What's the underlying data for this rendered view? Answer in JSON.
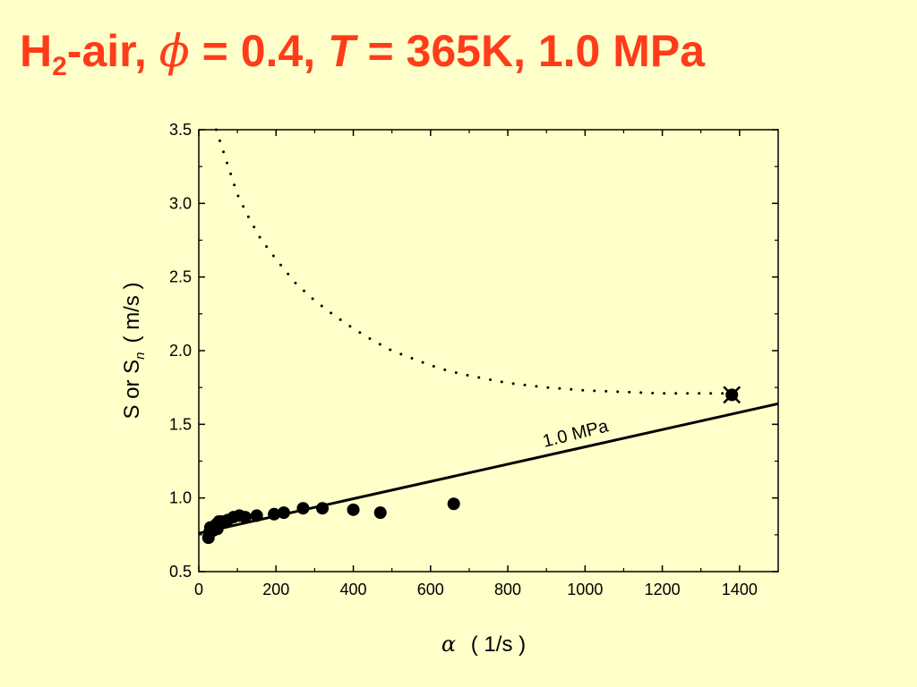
{
  "slide": {
    "title_h": "H",
    "title_sub": "2",
    "title_air": "-air, ",
    "title_phi_symbol": "ϕ",
    "title_phi_value": " = 0.4, ",
    "title_T_symbol": "T",
    "title_T_value": " = 365K, 1.0 MPa",
    "title_color": "#ff3c1a",
    "background_color": "#ffffc9"
  },
  "chart_data": {
    "type": "scatter",
    "xlabel_symbol": "α",
    "xlabel_unit": "( 1/s )",
    "ylabel": "S or S",
    "ylabel_sub": "n",
    "ylabel_unit": "( m/s )",
    "xlim": [
      0,
      1500
    ],
    "ylim": [
      0.5,
      3.5
    ],
    "xticks": [
      0,
      200,
      400,
      600,
      800,
      1000,
      1200,
      1400
    ],
    "yticks": [
      0.5,
      1.0,
      1.5,
      2.0,
      2.5,
      3.0,
      3.5
    ],
    "ytick_labels": [
      "0.5",
      "1.0",
      "1.5",
      "2.0",
      "2.5",
      "3.0",
      "3.5"
    ],
    "grid": false,
    "series": [
      {
        "kind": "points",
        "marker": "filled-circle",
        "points": [
          {
            "x": 25,
            "y": 0.73
          },
          {
            "x": 28,
            "y": 0.77
          },
          {
            "x": 30,
            "y": 0.8
          },
          {
            "x": 38,
            "y": 0.78
          },
          {
            "x": 45,
            "y": 0.82
          },
          {
            "x": 48,
            "y": 0.79
          },
          {
            "x": 52,
            "y": 0.84
          },
          {
            "x": 60,
            "y": 0.84
          },
          {
            "x": 75,
            "y": 0.85
          },
          {
            "x": 90,
            "y": 0.87
          },
          {
            "x": 105,
            "y": 0.88
          },
          {
            "x": 120,
            "y": 0.87
          },
          {
            "x": 150,
            "y": 0.88
          },
          {
            "x": 195,
            "y": 0.89
          },
          {
            "x": 220,
            "y": 0.9
          },
          {
            "x": 270,
            "y": 0.93
          },
          {
            "x": 320,
            "y": 0.93
          },
          {
            "x": 400,
            "y": 0.92
          },
          {
            "x": 470,
            "y": 0.9
          },
          {
            "x": 660,
            "y": 0.96
          }
        ]
      },
      {
        "kind": "line",
        "style": "solid",
        "label": "1.0 MPa",
        "x": [
          0,
          1500
        ],
        "y": [
          0.76,
          1.64
        ]
      },
      {
        "kind": "line",
        "style": "dotted",
        "x": [
          45,
          60,
          80,
          100,
          130,
          160,
          200,
          250,
          300,
          350,
          400,
          450,
          500,
          550,
          600,
          650,
          700,
          800,
          900,
          1000,
          1100,
          1200,
          1300,
          1380
        ],
        "y": [
          3.5,
          3.38,
          3.22,
          3.06,
          2.9,
          2.76,
          2.62,
          2.46,
          2.34,
          2.24,
          2.15,
          2.07,
          2.0,
          1.95,
          1.9,
          1.86,
          1.83,
          1.78,
          1.75,
          1.73,
          1.72,
          1.71,
          1.71,
          1.71
        ]
      },
      {
        "kind": "point",
        "marker": "circle-with-x",
        "x": 1380,
        "y": 1.7
      }
    ]
  }
}
